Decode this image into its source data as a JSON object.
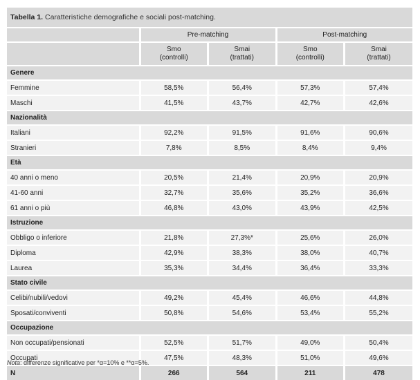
{
  "title": {
    "number": "Tabella 1.",
    "text": "Caratteristiche demografiche e sociali post-matching."
  },
  "header": {
    "groups": [
      "Pre-matching",
      "Post-matching"
    ],
    "columns": [
      [
        "Smo",
        "(controlli)"
      ],
      [
        "Smai",
        "(trattati)"
      ],
      [
        "Smo",
        "(controlli)"
      ],
      [
        "Smai",
        "(trattati)"
      ]
    ]
  },
  "sections": [
    {
      "name": "Genere",
      "rows": [
        {
          "label": "Femmine",
          "values": [
            "58,5%",
            "56,4%",
            "57,3%",
            "57,4%"
          ]
        },
        {
          "label": "Maschi",
          "values": [
            "41,5%",
            "43,7%",
            "42,7%",
            "42,6%"
          ]
        }
      ]
    },
    {
      "name": "Nazionalità",
      "rows": [
        {
          "label": "Italiani",
          "values": [
            "92,2%",
            "91,5%",
            "91,6%",
            "90,6%"
          ]
        },
        {
          "label": "Stranieri",
          "values": [
            "7,8%",
            "8,5%",
            "8,4%",
            "9,4%"
          ]
        }
      ]
    },
    {
      "name": "Età",
      "rows": [
        {
          "label": "40 anni o meno",
          "values": [
            "20,5%",
            "21,4%",
            "20,9%",
            "20,9%"
          ]
        },
        {
          "label": "41-60 anni",
          "values": [
            "32,7%",
            "35,6%",
            "35,2%",
            "36,6%"
          ]
        },
        {
          "label": "61 anni o più",
          "values": [
            "46,8%",
            "43,0%",
            "43,9%",
            "42,5%"
          ]
        }
      ]
    },
    {
      "name": "Istruzione",
      "rows": [
        {
          "label": "Obbligo o inferiore",
          "values": [
            "21,8%",
            "27,3%*",
            "25,6%",
            "26,0%"
          ]
        },
        {
          "label": "Diploma",
          "values": [
            "42,9%",
            "38,3%",
            "38,0%",
            "40,7%"
          ]
        },
        {
          "label": "Laurea",
          "values": [
            "35,3%",
            "34,4%",
            "36,4%",
            "33,3%"
          ]
        }
      ]
    },
    {
      "name": "Stato civile",
      "rows": [
        {
          "label": "Celibi/nubili/vedovi",
          "values": [
            "49,2%",
            "45,4%",
            "46,6%",
            "44,8%"
          ]
        },
        {
          "label": "Sposati/conviventi",
          "values": [
            "50,8%",
            "54,6%",
            "53,4%",
            "55,2%"
          ]
        }
      ]
    },
    {
      "name": "Occupazione",
      "rows": [
        {
          "label": "Non occupati/pensionati",
          "values": [
            "52,5%",
            "51,7%",
            "49,0%",
            "50,4%"
          ]
        },
        {
          "label": "Occupati",
          "values": [
            "47,5%",
            "48,3%",
            "51,0%",
            "49,6%"
          ]
        }
      ]
    }
  ],
  "n_row": {
    "label": "N",
    "values": [
      "266",
      "564",
      "211",
      "478"
    ]
  },
  "note": {
    "prefix": "Nota",
    "text": ": differenze significative per *α=10% e **α=5%."
  }
}
